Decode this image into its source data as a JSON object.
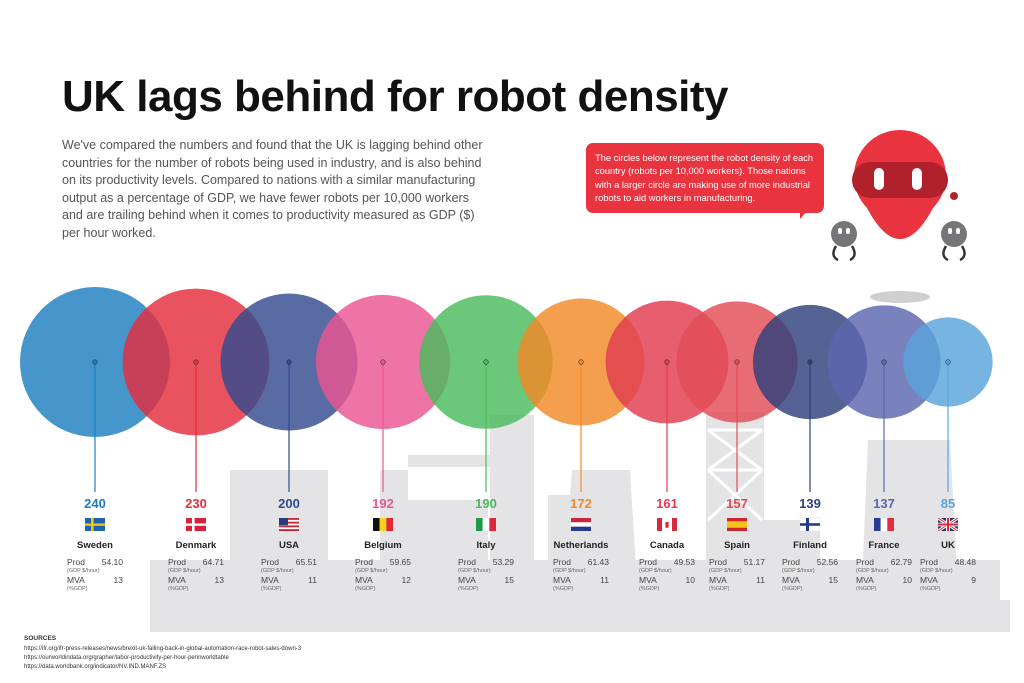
{
  "title": "UK lags behind for robot density",
  "intro": "We've compared the numbers and found that the UK is lagging behind other countries for the number of robots being used in industry, and is also behind on its productivity levels. Compared to nations with a similar manufacturing output as a percentage of GDP, we have fewer robots per 10,000 workers and are trailing behind when it comes to productivity measured as GDP ($) per hour worked.",
  "callout": "The circles below represent the robot density of each country (robots per 10,000 workers). Those nations with a larger circle are making use of more industrial robots to aid workers in manufacturing.",
  "labels": {
    "prod": "Prod",
    "prod_unit": "(GDP $/hour)",
    "mva": "MVA",
    "mva_unit": "(%GDP)"
  },
  "chart_data": {
    "type": "bubble",
    "measure": "robots per 10,000 workers",
    "countries": [
      {
        "name": "Sweden",
        "density": 240,
        "prod": "54.10",
        "mva": "13",
        "color": "#1e7fc0",
        "flag": "sweden"
      },
      {
        "name": "Denmark",
        "density": 230,
        "prod": "64.71",
        "mva": "13",
        "color": "#e42d3d",
        "flag": "denmark"
      },
      {
        "name": "USA",
        "density": 200,
        "prod": "65.51",
        "mva": "11",
        "color": "#334a8e",
        "flag": "usa"
      },
      {
        "name": "Belgium",
        "density": 192,
        "prod": "59.65",
        "mva": "12",
        "color": "#ea5693",
        "flag": "belgium"
      },
      {
        "name": "Italy",
        "density": 190,
        "prod": "53.29",
        "mva": "15",
        "color": "#4bbb5c",
        "flag": "italy"
      },
      {
        "name": "Netherlands",
        "density": 172,
        "prod": "61.43",
        "mva": "11",
        "color": "#f28a26",
        "flag": "netherlands"
      },
      {
        "name": "Canada",
        "density": 161,
        "prod": "49.53",
        "mva": "10",
        "color": "#e23c4e",
        "flag": "canada"
      },
      {
        "name": "Spain",
        "density": 157,
        "prod": "51.17",
        "mva": "11",
        "color": "#e24c56",
        "flag": "spain"
      },
      {
        "name": "Finland",
        "density": 139,
        "prod": "52.56",
        "mva": "15",
        "color": "#2e3f7c",
        "flag": "finland"
      },
      {
        "name": "France",
        "density": 137,
        "prod": "62.79",
        "mva": "10",
        "color": "#5b66ae",
        "flag": "france"
      },
      {
        "name": "UK",
        "density": 85,
        "prod": "48.48",
        "mva": "9",
        "color": "#5aa4dc",
        "flag": "uk"
      }
    ]
  },
  "sources": {
    "heading": "SOURCES",
    "links": [
      "https://ifr.org/ifr-press-releases/news/brexit-uk-falling-back-in-global-automation-race-robot-sales-down-3",
      "https://ourworldindata.org/grapher/labor-productivity-per-hour-pennworldtable",
      "https://data.worldbank.org/indicator/NV.IND.MANF.ZS"
    ]
  }
}
